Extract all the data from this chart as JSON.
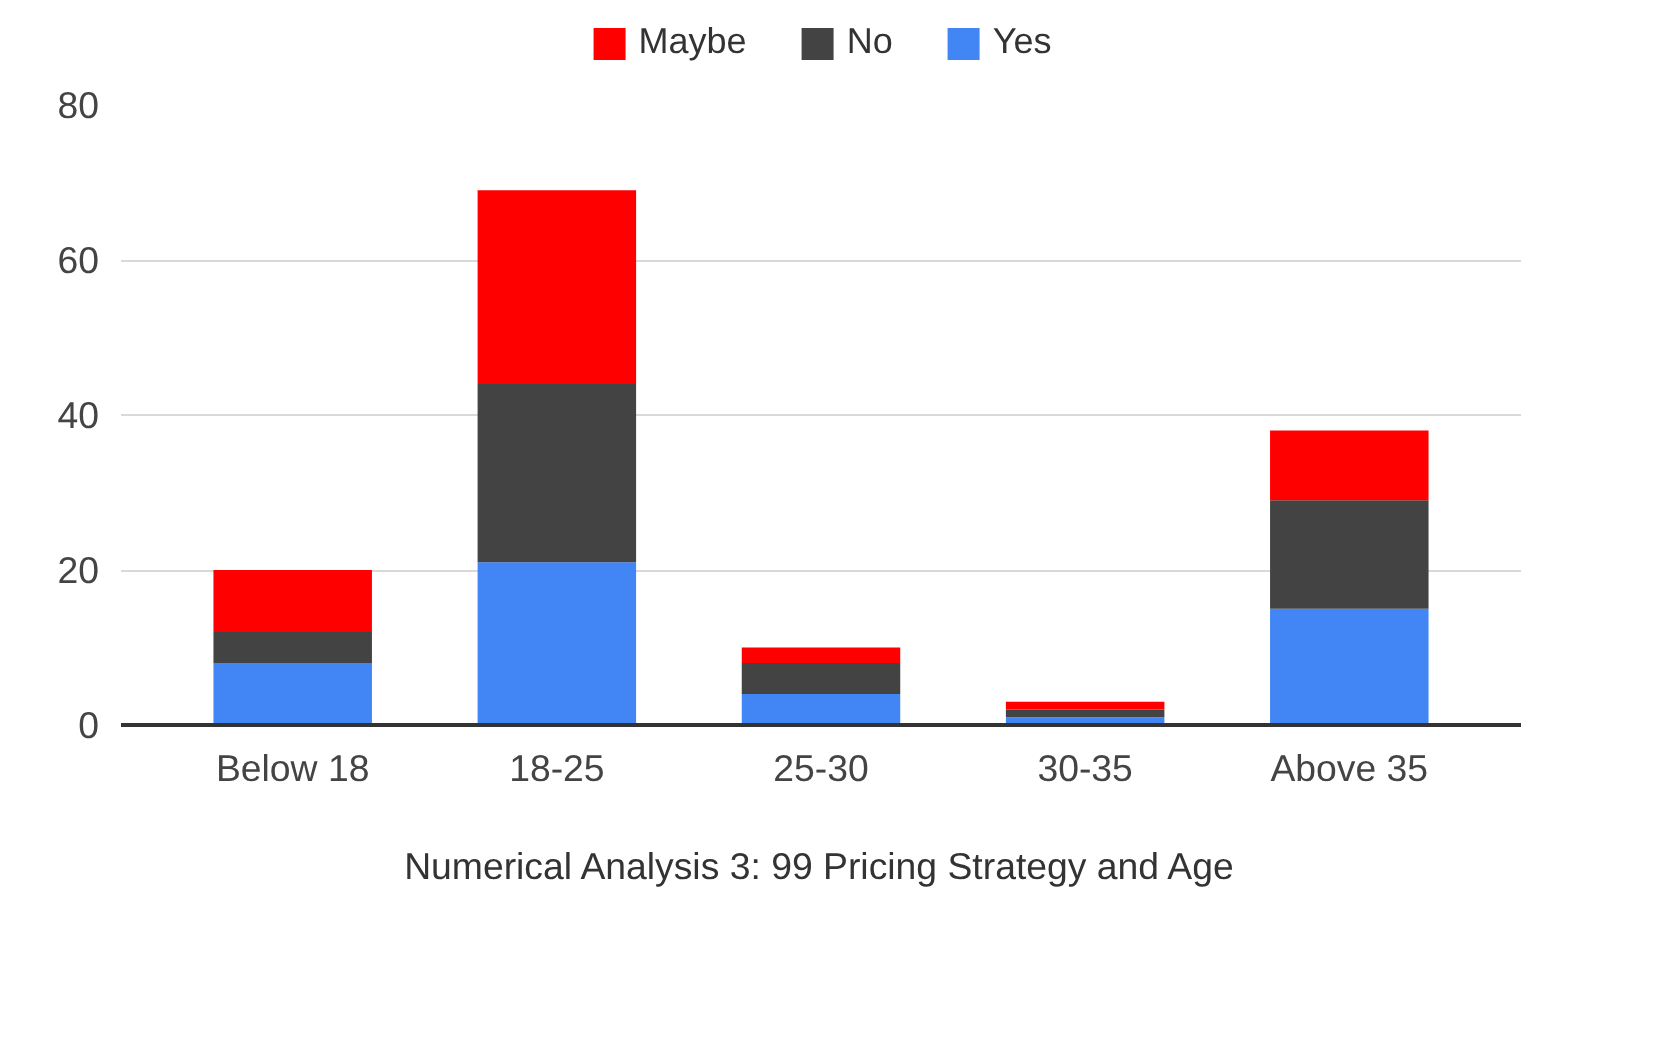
{
  "chart_data": {
    "type": "bar",
    "stacked": true,
    "xlabel": "Numerical Analysis 3: 99 Pricing Strategy and Age",
    "categories": [
      "Below 18",
      "18-25",
      "25-30",
      "30-35",
      "Above 35"
    ],
    "series": [
      {
        "name": "Yes",
        "color": "#4285f4",
        "values": [
          8,
          21,
          4,
          1,
          15
        ]
      },
      {
        "name": "No",
        "color": "#434343",
        "values": [
          4,
          23,
          4,
          1,
          14
        ]
      },
      {
        "name": "Maybe",
        "color": "#ff0000",
        "values": [
          8,
          25,
          2,
          1,
          9
        ]
      }
    ],
    "ylim": [
      0,
      80
    ],
    "yticks": [
      0,
      20,
      40,
      60,
      80
    ],
    "grid": "y",
    "legend": "top"
  }
}
